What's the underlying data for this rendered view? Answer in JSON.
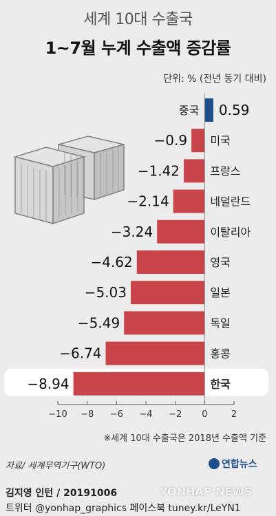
{
  "header": {
    "title": "세계 10대 수출국",
    "subtitle": "1~7월 누계 수출액 증감률",
    "unit": "단위: % (전년 동기 대비)"
  },
  "footer": {
    "note": "※세계 10대 수출국은 2018년 수출액 기준",
    "source": "자료/ 세계무역기구(WTO)",
    "logo_text": "연합뉴스",
    "author": "김지영 인턴 / 20191006",
    "social": "트위터 @yonhap_graphics  페이스북 tuney.kr/LeYN1",
    "watermark": "YONHAP NEWS"
  },
  "colors": {
    "negative": "#c8454a",
    "positive": "#1e4e8c",
    "highlight_row": "#ffffff"
  },
  "chart_data": {
    "type": "bar",
    "orientation": "horizontal",
    "categories": [
      "중국",
      "미국",
      "프랑스",
      "네덜란드",
      "이탈리아",
      "영국",
      "일본",
      "독일",
      "홍콩",
      "한국"
    ],
    "values": [
      0.59,
      -0.9,
      -1.42,
      -2.14,
      -3.24,
      -4.62,
      -5.03,
      -5.49,
      -6.74,
      -8.94
    ],
    "value_labels": [
      "0.59",
      "−0.9",
      "−1.42",
      "−2.14",
      "−3.24",
      "−4.62",
      "−5.03",
      "−5.49",
      "−6.74",
      "−8.94"
    ],
    "highlight": "한국",
    "xlim": [
      -10,
      2
    ],
    "xticks": [
      -10,
      -8,
      -6,
      -4,
      -2,
      0,
      2
    ],
    "xtick_labels": [
      "−10",
      "−8",
      "−6",
      "−4",
      "−2",
      "0",
      "2"
    ]
  }
}
